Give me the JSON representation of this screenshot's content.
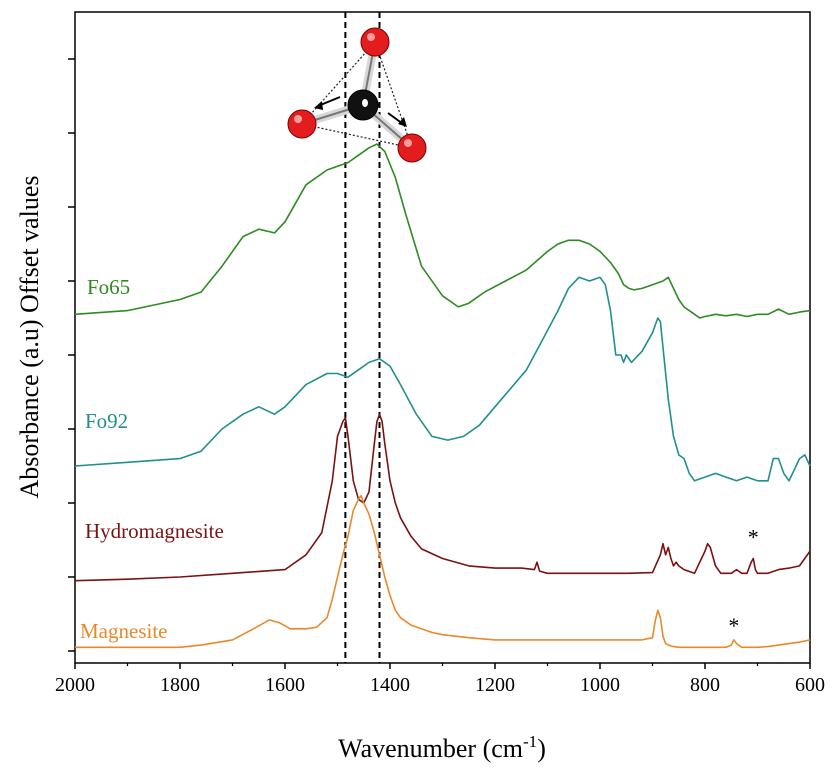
{
  "chart_data": {
    "type": "line",
    "title": "",
    "xlabel": "Wavenumber (cm",
    "xlabel_sup": "-1",
    "xlabel_close": ")",
    "ylabel": "Absorbance (a.u) Offset values",
    "xlim": [
      2000,
      600
    ],
    "x_reversed": true,
    "ylim": [
      0,
      10
    ],
    "y_tick_labels_shown": false,
    "grid": false,
    "legend": "none (series labelled inline on the left)",
    "x_ticks": [
      2000,
      1800,
      1600,
      1400,
      1200,
      1000,
      800,
      600
    ],
    "y_ticks": [
      0,
      1,
      2,
      3,
      4,
      5,
      6,
      7,
      8
    ],
    "reference_lines": [
      {
        "x": 1485,
        "style": "dashed",
        "color": "#000000"
      },
      {
        "x": 1420,
        "style": "dashed",
        "color": "#000000"
      }
    ],
    "annotations": [
      {
        "text": "*",
        "x": 708,
        "y": 1.55
      },
      {
        "text": "*",
        "x": 745,
        "y": 0.35
      }
    ],
    "inset": "carbonate-ion-molecule-diagram",
    "series": [
      {
        "name": "Fo65",
        "color": "#2e8b22",
        "x": [
          2000,
          1900,
          1800,
          1760,
          1720,
          1680,
          1650,
          1620,
          1600,
          1560,
          1520,
          1500,
          1480,
          1460,
          1440,
          1425,
          1410,
          1390,
          1370,
          1340,
          1300,
          1270,
          1250,
          1220,
          1180,
          1140,
          1100,
          1080,
          1060,
          1040,
          1020,
          1000,
          980,
          965,
          955,
          945,
          935,
          920,
          900,
          880,
          870,
          860,
          850,
          840,
          820,
          810,
          800,
          780,
          760,
          740,
          720,
          700,
          680,
          660,
          640,
          620,
          600
        ],
        "y": [
          4.55,
          4.6,
          4.75,
          4.85,
          5.2,
          5.6,
          5.7,
          5.65,
          5.8,
          6.3,
          6.5,
          6.55,
          6.6,
          6.7,
          6.8,
          6.85,
          6.75,
          6.4,
          5.9,
          5.2,
          4.8,
          4.65,
          4.7,
          4.85,
          5.0,
          5.15,
          5.4,
          5.5,
          5.55,
          5.55,
          5.5,
          5.4,
          5.25,
          5.1,
          4.95,
          4.9,
          4.88,
          4.9,
          4.95,
          5.0,
          5.05,
          4.9,
          4.75,
          4.65,
          4.55,
          4.5,
          4.52,
          4.55,
          4.53,
          4.55,
          4.52,
          4.55,
          4.55,
          4.62,
          4.55,
          4.58,
          4.6
        ]
      },
      {
        "name": "Fo92",
        "color": "#20908e",
        "x": [
          2000,
          1900,
          1800,
          1760,
          1720,
          1680,
          1650,
          1620,
          1600,
          1560,
          1520,
          1500,
          1480,
          1460,
          1440,
          1420,
          1400,
          1380,
          1350,
          1320,
          1290,
          1260,
          1230,
          1200,
          1170,
          1140,
          1110,
          1080,
          1060,
          1040,
          1020,
          1000,
          990,
          980,
          970,
          960,
          955,
          950,
          940,
          920,
          900,
          890,
          885,
          880,
          870,
          860,
          850,
          840,
          830,
          820,
          800,
          780,
          760,
          740,
          720,
          700,
          680,
          670,
          660,
          650,
          640,
          630,
          620,
          610,
          600
        ],
        "y": [
          2.5,
          2.55,
          2.6,
          2.7,
          3.0,
          3.2,
          3.3,
          3.2,
          3.3,
          3.6,
          3.75,
          3.75,
          3.7,
          3.8,
          3.9,
          3.95,
          3.85,
          3.6,
          3.2,
          2.9,
          2.85,
          2.9,
          3.05,
          3.3,
          3.55,
          3.8,
          4.2,
          4.6,
          4.9,
          5.05,
          5.0,
          5.05,
          4.95,
          4.6,
          4.0,
          4.0,
          3.9,
          4.0,
          3.9,
          4.05,
          4.3,
          4.5,
          4.45,
          4.1,
          3.4,
          2.9,
          2.65,
          2.6,
          2.4,
          2.3,
          2.35,
          2.4,
          2.35,
          2.3,
          2.35,
          2.3,
          2.3,
          2.6,
          2.6,
          2.4,
          2.3,
          2.45,
          2.6,
          2.65,
          2.5
        ]
      },
      {
        "name": "Hydromagnesite",
        "color": "#7b1212",
        "x": [
          2000,
          1900,
          1800,
          1700,
          1600,
          1560,
          1530,
          1510,
          1500,
          1490,
          1485,
          1480,
          1470,
          1460,
          1450,
          1440,
          1430,
          1425,
          1420,
          1415,
          1410,
          1400,
          1390,
          1380,
          1360,
          1340,
          1300,
          1250,
          1200,
          1150,
          1125,
          1120,
          1115,
          1100,
          1050,
          1000,
          950,
          900,
          885,
          880,
          875,
          870,
          865,
          860,
          855,
          850,
          840,
          820,
          800,
          795,
          790,
          780,
          770,
          750,
          740,
          730,
          720,
          712,
          708,
          704,
          700,
          680,
          660,
          640,
          620,
          600
        ],
        "y": [
          0.95,
          0.97,
          1.0,
          1.05,
          1.1,
          1.3,
          1.6,
          2.3,
          2.9,
          3.1,
          3.15,
          2.9,
          2.3,
          2.05,
          2.0,
          2.15,
          2.8,
          3.1,
          3.2,
          3.1,
          2.8,
          2.3,
          2.0,
          1.8,
          1.55,
          1.38,
          1.25,
          1.15,
          1.12,
          1.12,
          1.1,
          1.2,
          1.08,
          1.05,
          1.05,
          1.05,
          1.05,
          1.06,
          1.3,
          1.45,
          1.3,
          1.4,
          1.25,
          1.15,
          1.2,
          1.15,
          1.1,
          1.05,
          1.35,
          1.45,
          1.4,
          1.15,
          1.05,
          1.05,
          1.1,
          1.05,
          1.05,
          1.2,
          1.25,
          1.1,
          1.05,
          1.05,
          1.1,
          1.12,
          1.15,
          1.35
        ]
      },
      {
        "name": "Magnesite",
        "color": "#e8892c",
        "x": [
          2000,
          1900,
          1800,
          1760,
          1700,
          1660,
          1630,
          1610,
          1590,
          1560,
          1540,
          1520,
          1510,
          1500,
          1490,
          1480,
          1470,
          1460,
          1455,
          1450,
          1440,
          1430,
          1420,
          1410,
          1400,
          1390,
          1380,
          1360,
          1340,
          1320,
          1300,
          1250,
          1200,
          1150,
          1100,
          1050,
          1000,
          950,
          920,
          900,
          895,
          890,
          885,
          880,
          875,
          870,
          860,
          850,
          820,
          800,
          780,
          760,
          750,
          745,
          740,
          730,
          700,
          680,
          660,
          640,
          620,
          600
        ],
        "y": [
          0.05,
          0.05,
          0.05,
          0.08,
          0.15,
          0.3,
          0.42,
          0.38,
          0.3,
          0.3,
          0.32,
          0.45,
          0.7,
          1.0,
          1.3,
          1.55,
          1.9,
          2.05,
          2.1,
          2.0,
          1.85,
          1.6,
          1.3,
          1.0,
          0.75,
          0.55,
          0.45,
          0.35,
          0.3,
          0.25,
          0.22,
          0.18,
          0.15,
          0.15,
          0.15,
          0.15,
          0.15,
          0.15,
          0.15,
          0.18,
          0.4,
          0.55,
          0.45,
          0.2,
          0.1,
          0.08,
          0.06,
          0.05,
          0.05,
          0.05,
          0.05,
          0.05,
          0.08,
          0.15,
          0.1,
          0.05,
          0.05,
          0.06,
          0.08,
          0.1,
          0.12,
          0.15
        ]
      }
    ]
  }
}
